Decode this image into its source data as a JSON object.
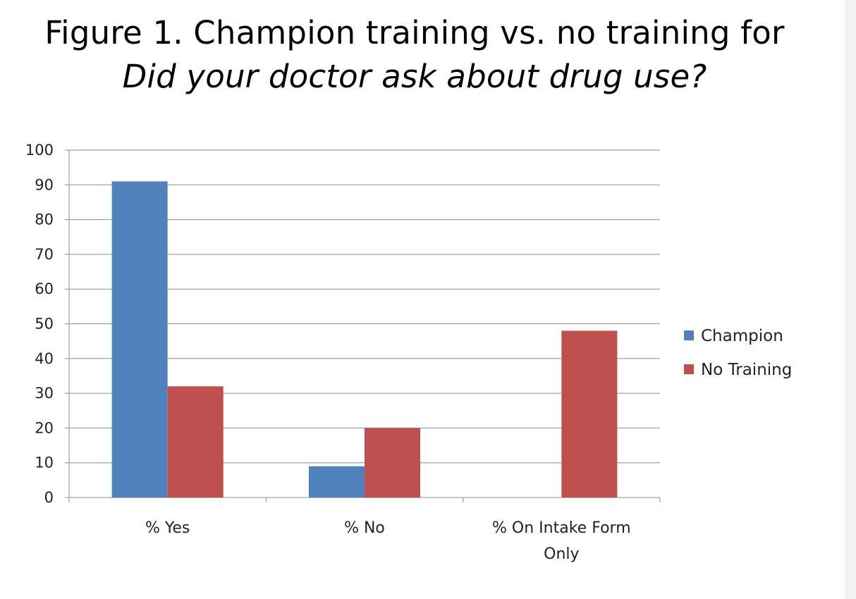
{
  "title": {
    "line1": "Figure 1. Champion training vs. no training for",
    "line2": "Did your doctor ask about drug use?"
  },
  "chart_data": {
    "type": "bar",
    "categories": [
      "% Yes",
      "% No",
      "% On Intake Form Only"
    ],
    "category_lines": [
      [
        "% Yes"
      ],
      [
        "% No"
      ],
      [
        "% On Intake Form",
        "Only"
      ]
    ],
    "series": [
      {
        "name": "Champion",
        "values": [
          91,
          9,
          0
        ],
        "color": "#4f81bd"
      },
      {
        "name": "No Training",
        "values": [
          32,
          20,
          48
        ],
        "color": "#c0504d"
      }
    ],
    "ylim": [
      0,
      100
    ],
    "yticks": [
      0,
      10,
      20,
      30,
      40,
      50,
      60,
      70,
      80,
      90,
      100
    ],
    "grid": true,
    "legend": "right",
    "title": "Figure 1. Champion training vs. no training for Did your doctor ask about drug use?",
    "xlabel": "",
    "ylabel": ""
  }
}
